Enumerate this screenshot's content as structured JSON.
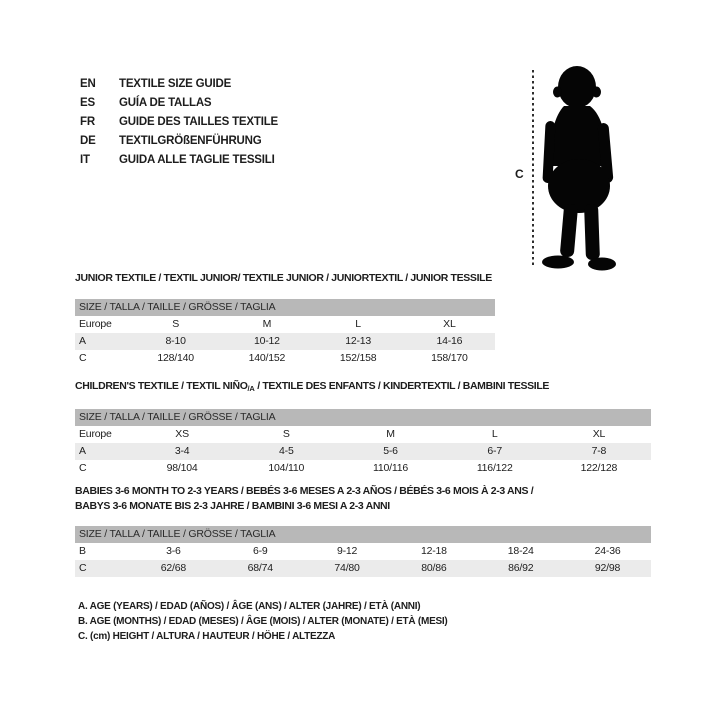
{
  "languages": {
    "items": [
      {
        "code": "EN",
        "title": "TEXTILE SIZE GUIDE"
      },
      {
        "code": "ES",
        "title": "GUÍA DE TALLAS"
      },
      {
        "code": "FR",
        "title": "GUIDE DES TAILLES TEXTILE"
      },
      {
        "code": "DE",
        "title": "TEXTILGRÖßENFÜHRUNG"
      },
      {
        "code": "IT",
        "title": "GUIDA ALLE TAGLIE TESSILI"
      }
    ]
  },
  "figure": {
    "height_label": "C",
    "icon": "baby-toddler-silhouette"
  },
  "colors": {
    "size_bar": "#b8b8b8",
    "row_stripe": "#ebebeb",
    "silhouette": "#050505",
    "dash_line": "#2e2e2e"
  },
  "tables": [
    {
      "name": "junior-textile",
      "title_lines": [
        [
          {
            "t": "JUNIOR TEXTILE / TEXTIL JUNIOR/ TEXTILE JUNIOR / JUNIORTEXTIL / JUNIOR TESSILE"
          }
        ]
      ],
      "size_bar": "SIZE / TALLA / TAILLE / GRÖSSE / TAGLIA",
      "rows": [
        {
          "label": "Europe",
          "cells": [
            "S",
            "M",
            "L",
            "XL"
          ],
          "shaded": false
        },
        {
          "label": "A",
          "cells": [
            "8-10",
            "10-12",
            "12-13",
            "14-16"
          ],
          "shaded": true
        },
        {
          "label": "C",
          "cells": [
            "128/140",
            "140/152",
            "152/158",
            "158/170"
          ],
          "shaded": false
        }
      ]
    },
    {
      "name": "childrens-textile",
      "title_lines": [
        [
          {
            "t": "CHILDREN'S TEXTILE / TEXTIL NIÑO"
          },
          {
            "t": "/A",
            "sub": true
          },
          {
            "t": " / TEXTILE DES ENFANTS / KINDERTEXTIL / BAMBINI TESSILE"
          }
        ]
      ],
      "size_bar": "SIZE / TALLA / TAILLE / GRÖSSE / TAGLIA",
      "rows": [
        {
          "label": "Europe",
          "cells": [
            "XS",
            "S",
            "M",
            "L",
            "XL"
          ],
          "shaded": false
        },
        {
          "label": "A",
          "cells": [
            "3-4",
            "4-5",
            "5-6",
            "6-7",
            "7-8"
          ],
          "shaded": true
        },
        {
          "label": "C",
          "cells": [
            "98/104",
            "104/110",
            "110/116",
            "116/122",
            "122/128"
          ],
          "shaded": false
        }
      ]
    },
    {
      "name": "babies-textile",
      "title_lines": [
        [
          {
            "t": "BABIES 3-6 MONTH TO 2-3 YEARS / BEBÉS 3-6 MESES A 2-3 AÑOS / BÉBÉS 3-6 MOIS À 2-3 ANS /"
          }
        ],
        [
          {
            "t": "BABYS 3-6 MONATE BIS 2-3 JAHRE / BAMBINI 3-6 MESI A 2-3 ANNI"
          }
        ]
      ],
      "size_bar": "SIZE / TALLA / TAILLE / GRÖSSE / TAGLIA",
      "rows": [
        {
          "label": "B",
          "cells": [
            "3-6",
            "6-9",
            "9-12",
            "12-18",
            "18-24",
            "24-36"
          ],
          "shaded": false
        },
        {
          "label": "C",
          "cells": [
            "62/68",
            "68/74",
            "74/80",
            "80/86",
            "86/92",
            "92/98"
          ],
          "shaded": true
        }
      ]
    }
  ],
  "footnotes": {
    "a": "A. AGE (YEARS) / EDAD (AÑOS) / ÂGE (ANS) / ALTER (JAHRE) / ETÀ (ANNI)",
    "b": "B. AGE (MONTHS) / EDAD (MESES) / ÂGE (MOIS) / ALTER (MONATE) / ETÀ (MESI)",
    "c": "C. (cm) HEIGHT / ALTURA / HAUTEUR / HÖHE / ALTEZZA"
  }
}
